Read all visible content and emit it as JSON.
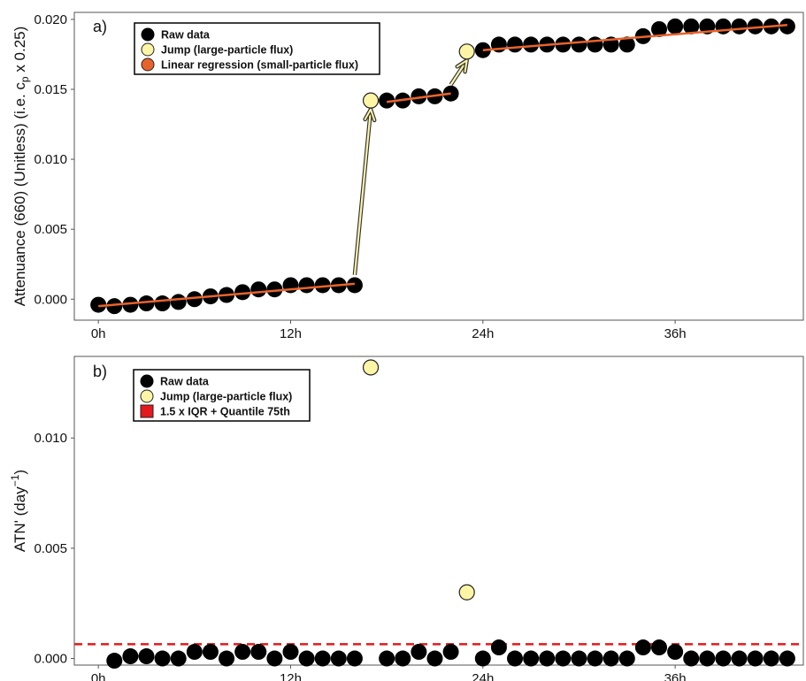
{
  "colors": {
    "raw": "#000000",
    "jump": "#fdf5a6",
    "regression": "#e8632a",
    "threshold": "#e41a1c",
    "axis": "#555555",
    "text": "#111111"
  },
  "chart_data": [
    {
      "type": "scatter",
      "panel_label": "a)",
      "ylabel_main": "Attenuance (660) (Unitless) (i.e. c",
      "ylabel_sub": "p",
      "ylabel_tail": " x 0.25)",
      "xlim": [
        -1.5,
        44
      ],
      "ylim": [
        -0.0015,
        0.0205
      ],
      "x_ticks": [
        0,
        12,
        24,
        36
      ],
      "x_tick_labels": [
        "0h",
        "12h",
        "24h",
        "36h"
      ],
      "y_ticks": [
        0,
        0.005,
        0.01,
        0.015,
        0.02
      ],
      "y_tick_labels": [
        "0.000",
        "0.005",
        "0.010",
        "0.015",
        "0.020"
      ],
      "legend_position": "top-left",
      "legend": [
        "Raw data",
        "Jump (large-particle flux)",
        "Linear regression (small-particle flux)"
      ],
      "series": [
        {
          "name": "Raw data",
          "x": [
            0,
            1,
            2,
            3,
            4,
            5,
            6,
            7,
            8,
            9,
            10,
            11,
            12,
            13,
            14,
            15,
            16,
            18,
            19,
            20,
            21,
            22,
            24,
            25,
            26,
            27,
            28,
            29,
            30,
            31,
            32,
            33,
            34,
            35,
            36,
            37,
            38,
            39,
            40,
            41,
            42,
            43
          ],
          "y": [
            -0.0004,
            -0.0005,
            -0.0004,
            -0.0003,
            -0.0003,
            -0.0002,
            0.0,
            0.0002,
            0.0003,
            0.0005,
            0.0007,
            0.0007,
            0.001,
            0.001,
            0.001,
            0.001,
            0.001,
            0.0142,
            0.0142,
            0.0145,
            0.0145,
            0.0147,
            0.0178,
            0.0182,
            0.0182,
            0.0182,
            0.0182,
            0.0182,
            0.0182,
            0.0182,
            0.0182,
            0.0182,
            0.0188,
            0.0193,
            0.0195,
            0.0195,
            0.0195,
            0.0195,
            0.0195,
            0.0195,
            0.0195,
            0.0195
          ]
        },
        {
          "name": "Jump (large-particle flux)",
          "x": [
            17,
            23
          ],
          "y": [
            0.0142,
            0.0177
          ]
        }
      ],
      "regression_segments": [
        {
          "x": [
            0,
            16
          ],
          "y": [
            -0.0005,
            0.0011
          ]
        },
        {
          "x": [
            18,
            22
          ],
          "y": [
            0.0141,
            0.0147
          ]
        },
        {
          "x": [
            24,
            43
          ],
          "y": [
            0.0178,
            0.0196
          ]
        }
      ],
      "jump_arrows": [
        {
          "from": [
            16,
            0.0011
          ],
          "to": [
            17,
            0.0142
          ]
        },
        {
          "from": [
            22,
            0.0147
          ],
          "to": [
            23,
            0.0177
          ]
        }
      ]
    },
    {
      "type": "scatter",
      "panel_label": "b)",
      "ylabel_main": "ATN' (day",
      "ylabel_sup": "−1",
      "ylabel_tail": ")",
      "xlim": [
        -1.5,
        44
      ],
      "ylim": [
        -0.0003,
        0.0137
      ],
      "x_ticks": [
        0,
        12,
        24,
        36
      ],
      "x_tick_labels": [
        "0h",
        "12h",
        "24h",
        "36h"
      ],
      "y_ticks": [
        0,
        0.005,
        0.01
      ],
      "y_tick_labels": [
        "0.000",
        "0.005",
        "0.010"
      ],
      "legend_position": "top-left",
      "legend": [
        "Raw data",
        "Jump (large-particle flux)",
        "1.5 x IQR + Quantile 75th"
      ],
      "threshold": 0.00065,
      "series": [
        {
          "name": "Raw data",
          "x": [
            1,
            2,
            3,
            4,
            5,
            6,
            7,
            8,
            9,
            10,
            11,
            12,
            13,
            14,
            15,
            16,
            18,
            19,
            20,
            21,
            22,
            24,
            25,
            26,
            27,
            28,
            29,
            30,
            31,
            32,
            33,
            34,
            35,
            36,
            37,
            38,
            39,
            40,
            41,
            42,
            43
          ],
          "y": [
            -0.0001,
            0.0001,
            0.0001,
            0.0,
            0.0,
            0.0003,
            0.0003,
            0.0,
            0.0003,
            0.0003,
            0.0,
            0.0003,
            0.0,
            0.0,
            0.0,
            0.0,
            0.0,
            0.0,
            0.0003,
            0.0,
            0.0003,
            0.0,
            0.0005,
            0.0,
            0.0,
            0.0,
            0.0,
            0.0,
            0.0,
            0.0,
            0.0,
            0.0005,
            0.0005,
            0.0003,
            0.0,
            0.0,
            0.0,
            0.0,
            0.0,
            0.0,
            0.0
          ]
        },
        {
          "name": "Jump (large-particle flux)",
          "x": [
            17,
            23
          ],
          "y": [
            0.0132,
            0.003
          ]
        }
      ]
    }
  ]
}
